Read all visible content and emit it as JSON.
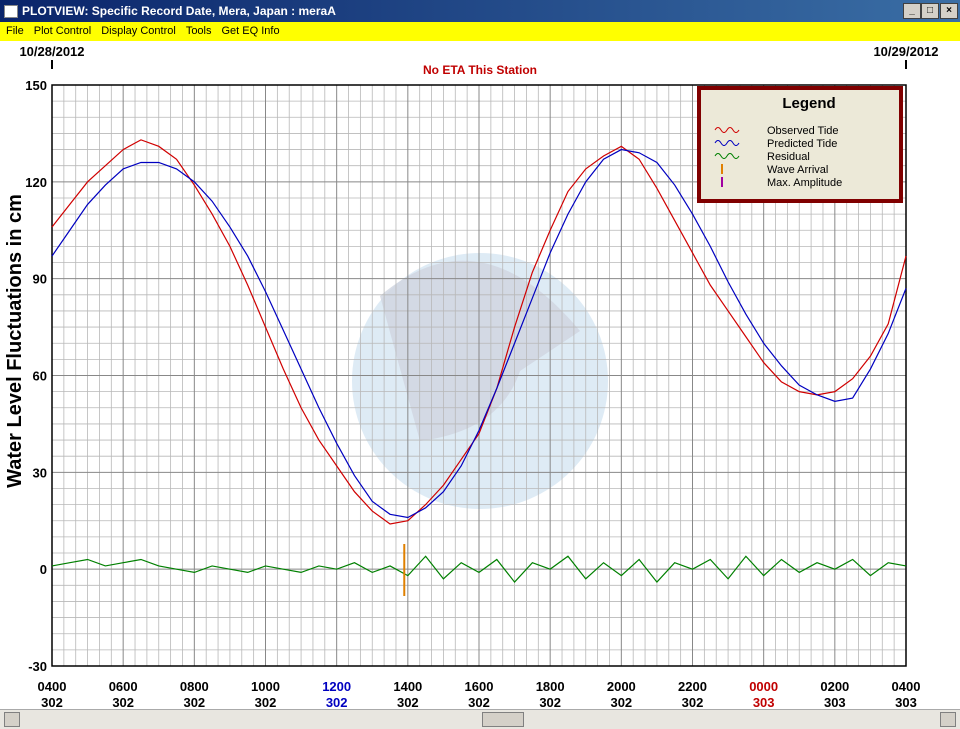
{
  "window": {
    "title": "PLOTVIEW: Specific Record Date, Mera, Japan : meraA",
    "menu": [
      "File",
      "Plot Control",
      "Display Control",
      "Tools",
      "Get EQ Info"
    ]
  },
  "chart_data": {
    "type": "line",
    "title": "No ETA This Station",
    "start_date": "10/28/2012",
    "end_date": "10/29/2012",
    "y_label": "Water Level Fluctuations in cm",
    "legend_title": "Legend",
    "legend_position": "upper right",
    "grid": true,
    "xlim": [
      0,
      24
    ],
    "xticks": [
      {
        "value": 0,
        "label": "0400"
      },
      {
        "value": 2,
        "label": "0600"
      },
      {
        "value": 4,
        "label": "0800"
      },
      {
        "value": 6,
        "label": "1000"
      },
      {
        "value": 8,
        "label": "1200"
      },
      {
        "value": 10,
        "label": "1400"
      },
      {
        "value": 12,
        "label": "1600"
      },
      {
        "value": 14,
        "label": "1800"
      },
      {
        "value": 16,
        "label": "2000"
      },
      {
        "value": 18,
        "label": "2200"
      },
      {
        "value": 20,
        "label": "0000"
      },
      {
        "value": 22,
        "label": "0200"
      },
      {
        "value": 24,
        "label": "0400"
      }
    ],
    "xtick_days": [
      "302",
      "302",
      "302",
      "302",
      "302",
      "302",
      "302",
      "302",
      "302",
      "302",
      "303",
      "303",
      "303"
    ],
    "xtick_colors": [
      "#000000",
      "#000000",
      "#000000",
      "#000000",
      "#0000c0",
      "#000000",
      "#000000",
      "#000000",
      "#000000",
      "#000000",
      "#c00000",
      "#000000",
      "#000000"
    ],
    "ylim": [
      -30,
      150
    ],
    "yticks": [
      -30,
      0,
      30,
      60,
      90,
      120,
      150
    ],
    "x": [
      0,
      0.5,
      1,
      1.5,
      2,
      2.5,
      3,
      3.5,
      4,
      4.5,
      5,
      5.5,
      6,
      6.5,
      7,
      7.5,
      8,
      8.5,
      9,
      9.5,
      10,
      10.5,
      11,
      11.5,
      12,
      12.5,
      13,
      13.5,
      14,
      14.5,
      15,
      15.5,
      16,
      16.5,
      17,
      17.5,
      18,
      18.5,
      19,
      19.5,
      20,
      20.5,
      21,
      21.5,
      22,
      22.5,
      23,
      23.5,
      24
    ],
    "series": [
      {
        "name": "Observed Tide",
        "color": "#d00000",
        "values": [
          106,
          113,
          120,
          125,
          130,
          133,
          131,
          127,
          119,
          110,
          100,
          88,
          75,
          62,
          50,
          40,
          32,
          24,
          18,
          14,
          15,
          20,
          26,
          34,
          42,
          56,
          75,
          92,
          105,
          117,
          124,
          128,
          131,
          127,
          118,
          108,
          98,
          88,
          80,
          72,
          64,
          58,
          55,
          54,
          55,
          59,
          66,
          76,
          97
        ]
      },
      {
        "name": "Predicted Tide",
        "color": "#0000c0",
        "values": [
          97,
          105,
          113,
          119,
          124,
          126,
          126,
          124,
          120,
          114,
          106,
          97,
          86,
          74,
          62,
          50,
          39,
          29,
          21,
          17,
          16,
          19,
          24,
          32,
          43,
          56,
          70,
          84,
          98,
          110,
          120,
          127,
          130,
          129,
          126,
          119,
          110,
          100,
          89,
          79,
          70,
          63,
          57,
          54,
          52,
          53,
          62,
          73,
          87
        ]
      },
      {
        "name": "Residual",
        "color": "#008000",
        "values": [
          1,
          2,
          3,
          1,
          2,
          3,
          1,
          0,
          -1,
          1,
          0,
          -1,
          1,
          0,
          -1,
          1,
          0,
          2,
          -1,
          1,
          -2,
          4,
          -3,
          2,
          -1,
          3,
          -4,
          2,
          0,
          4,
          -3,
          2,
          -2,
          3,
          -4,
          2,
          0,
          3,
          -3,
          4,
          -2,
          3,
          -1,
          2,
          0,
          3,
          -2,
          2,
          1
        ]
      }
    ],
    "markers": [
      {
        "name": "Wave Arrival",
        "color": "#e08000",
        "x": 9.9
      },
      {
        "name": "Max. Amplitude",
        "color": "#a000a0"
      }
    ]
  }
}
